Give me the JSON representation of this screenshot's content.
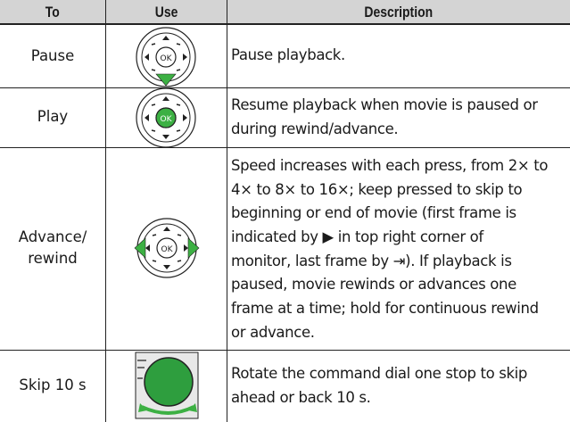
{
  "header": {
    "to": "To",
    "use": "Use",
    "description": "Description"
  },
  "rows": [
    {
      "to": [
        "Pause"
      ],
      "description": [
        "Pause playback."
      ]
    },
    {
      "to": [
        "Play"
      ],
      "description": [
        "Resume playback when movie is paused or",
        "during rewind/advance."
      ]
    },
    {
      "to": [
        "Advance/",
        "rewind"
      ],
      "description": [
        "Speed increases with each press, from 2× to",
        "4× to 8× to 16×; keep pressed to skip to",
        "beginning or end of movie (first frame is",
        "indicated by ▶ in top right corner of",
        "monitor, last frame by ⇥).  If playback is",
        "paused, movie rewinds or advances one",
        "frame at a time; hold for continuous rewind",
        "or advance."
      ]
    },
    {
      "to": [
        "Skip 10 s"
      ],
      "description": [
        "Rotate the command dial one stop to skip",
        "ahead or back 10 s."
      ]
    }
  ]
}
